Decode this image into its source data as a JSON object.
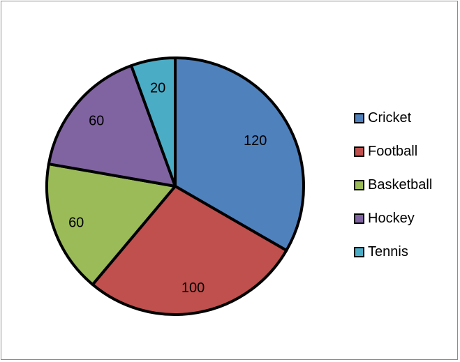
{
  "chart_data": {
    "type": "pie",
    "categories": [
      "Cricket",
      "Football",
      "Basketball",
      "Hockey",
      "Tennis"
    ],
    "values": [
      120,
      100,
      60,
      60,
      20
    ],
    "colors": [
      "#4F81BD",
      "#C0504D",
      "#9BBB59",
      "#8064A2",
      "#4BACC6"
    ],
    "data_labels": [
      "120",
      "100",
      "60",
      "60",
      "20"
    ],
    "legend_position": "right"
  }
}
